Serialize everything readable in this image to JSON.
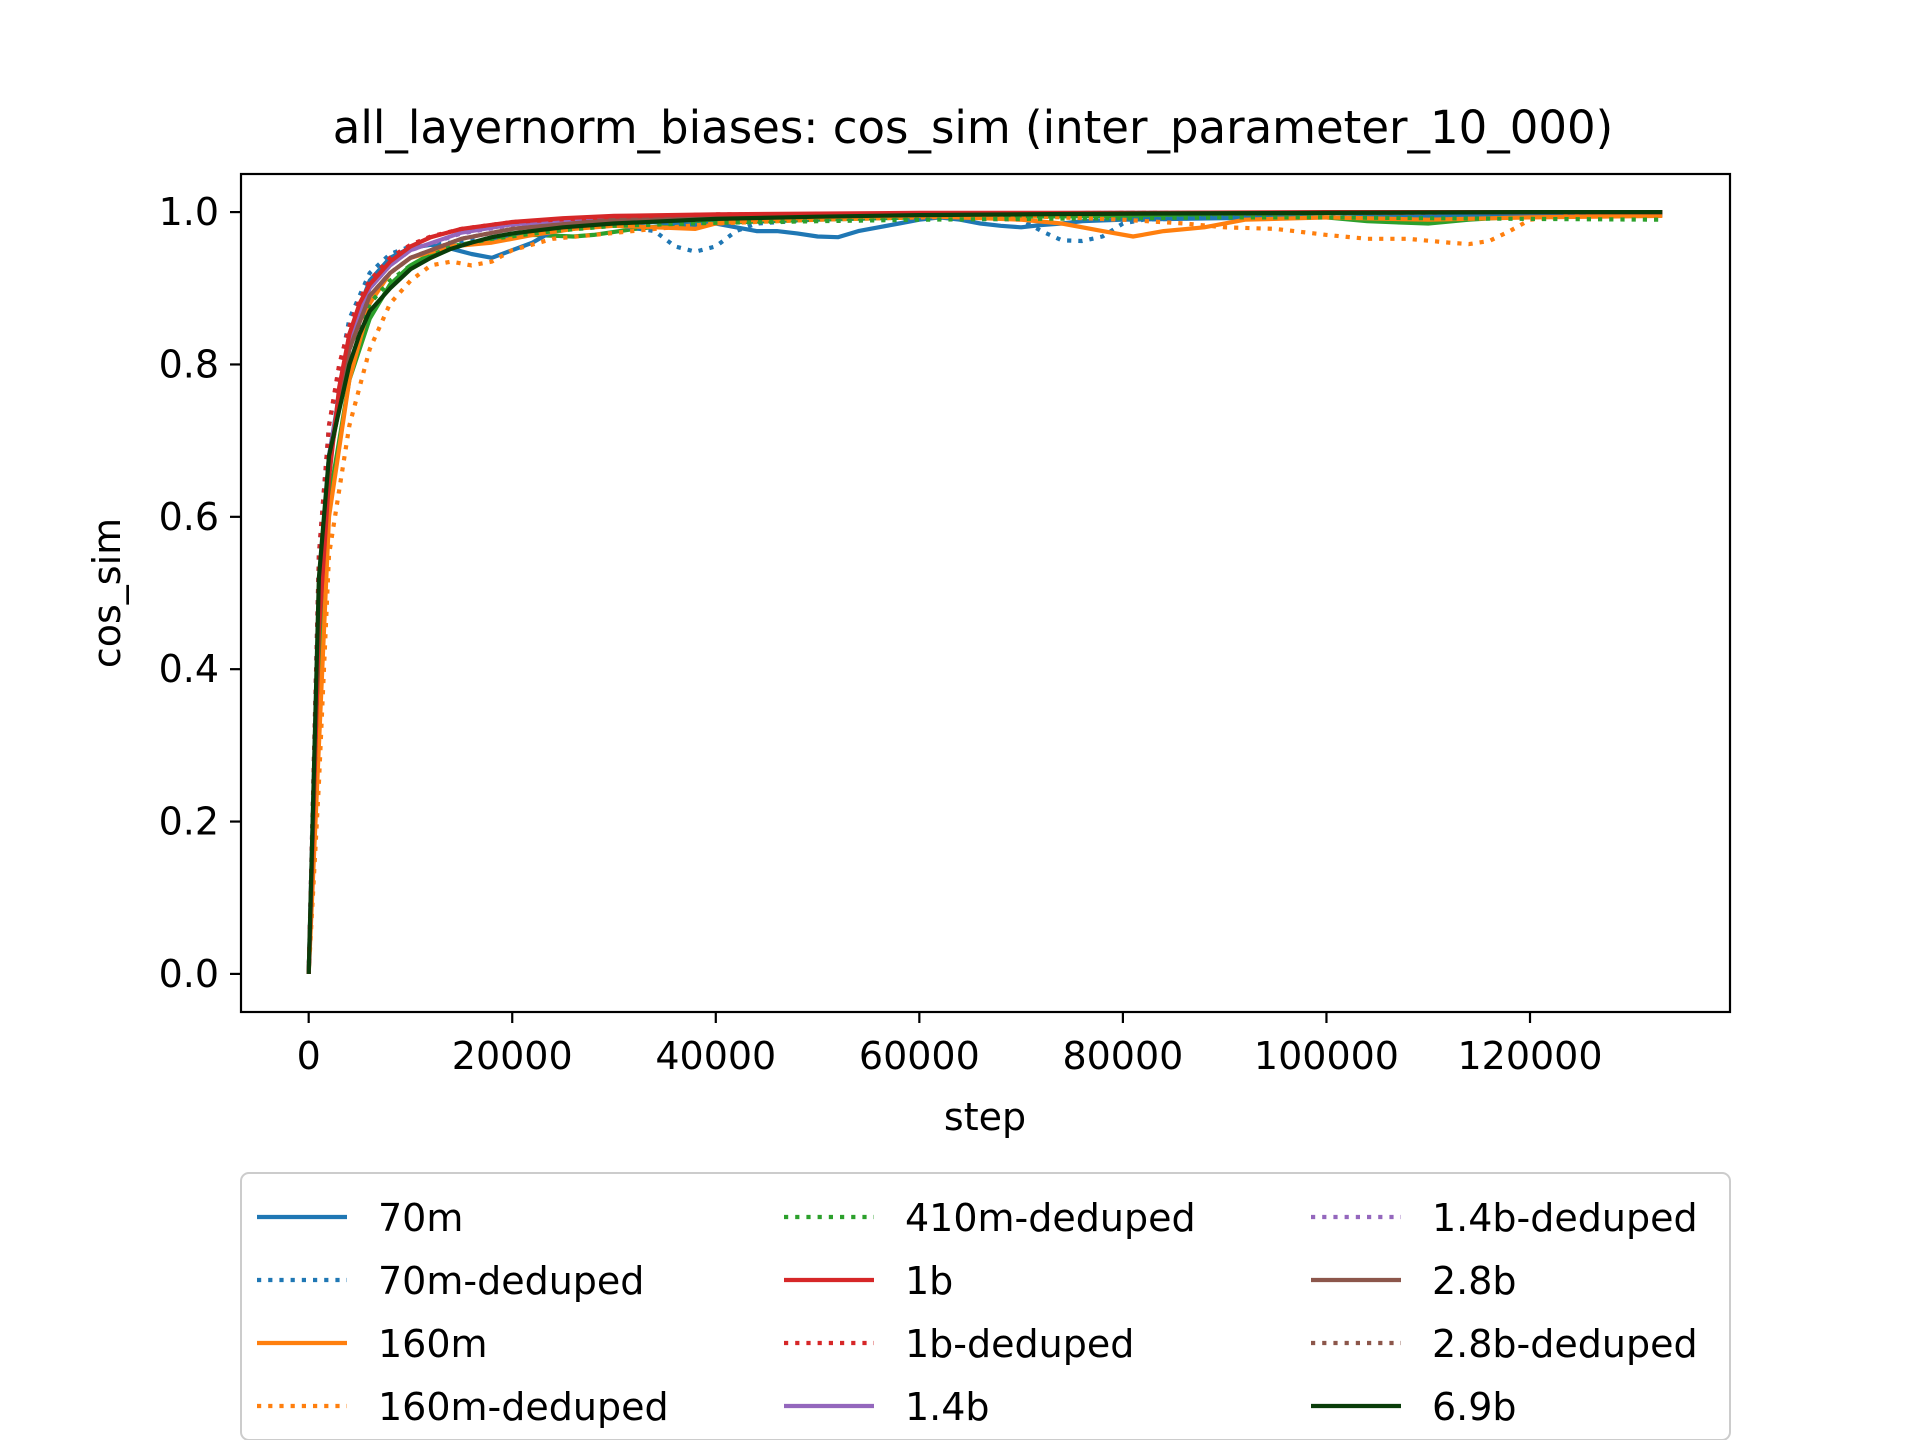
{
  "chart_data": {
    "type": "line",
    "title": "all_layernorm_biases: cos_sim (inter_parameter_10_000)",
    "xlabel": "step",
    "ylabel": "cos_sim",
    "xlim": [
      -6650,
      139650
    ],
    "ylim": [
      -0.05,
      1.05
    ],
    "xticks": [
      0,
      20000,
      40000,
      60000,
      80000,
      100000,
      120000
    ],
    "xtick_labels": [
      "0",
      "20000",
      "40000",
      "60000",
      "80000",
      "100000",
      "120000"
    ],
    "yticks": [
      0.0,
      0.2,
      0.4,
      0.6,
      0.8,
      1.0
    ],
    "ytick_labels": [
      "0.0",
      "0.2",
      "0.4",
      "0.6",
      "0.8",
      "1.0"
    ],
    "grid": false,
    "legend_position": "below plot, 3 columns",
    "series": [
      {
        "name": "70m",
        "color": "#1f77b4",
        "style": "solid",
        "x": [
          0,
          1000,
          2000,
          4000,
          6000,
          8000,
          10000,
          12000,
          14000,
          16000,
          18000,
          20000,
          22000,
          24000,
          26000,
          28000,
          30000,
          32000,
          34000,
          36000,
          38000,
          40000,
          42000,
          44000,
          46000,
          48000,
          50000,
          52000,
          54000,
          56000,
          58000,
          60000,
          62000,
          64000,
          66000,
          68000,
          70000,
          72000,
          74000,
          76000,
          80000,
          90000,
          100000,
          110000,
          120000,
          133000
        ],
        "y": [
          0.0,
          0.5,
          0.68,
          0.84,
          0.91,
          0.94,
          0.953,
          0.957,
          0.952,
          0.945,
          0.94,
          0.95,
          0.96,
          0.975,
          0.98,
          0.985,
          0.983,
          0.985,
          0.987,
          0.985,
          0.983,
          0.985,
          0.98,
          0.975,
          0.975,
          0.972,
          0.968,
          0.967,
          0.975,
          0.98,
          0.985,
          0.99,
          0.993,
          0.99,
          0.985,
          0.982,
          0.98,
          0.983,
          0.985,
          0.988,
          0.99,
          0.992,
          0.993,
          0.994,
          0.995,
          0.996
        ]
      },
      {
        "name": "70m-deduped",
        "color": "#1f77b4",
        "style": "dotted",
        "x": [
          0,
          1000,
          2000,
          4000,
          6000,
          8000,
          10000,
          14000,
          18000,
          22000,
          26000,
          30000,
          34000,
          36000,
          38000,
          40000,
          42000,
          44000,
          50000,
          60000,
          70000,
          72000,
          74000,
          76000,
          78000,
          80000,
          82000,
          90000,
          100000,
          110000,
          120000,
          133000
        ],
        "y": [
          0.0,
          0.55,
          0.72,
          0.86,
          0.92,
          0.945,
          0.955,
          0.96,
          0.965,
          0.97,
          0.978,
          0.983,
          0.975,
          0.955,
          0.948,
          0.955,
          0.975,
          0.985,
          0.99,
          0.993,
          0.99,
          0.975,
          0.963,
          0.962,
          0.968,
          0.985,
          0.99,
          0.993,
          0.994,
          0.995,
          0.995,
          0.996
        ]
      },
      {
        "name": "160m",
        "color": "#ff7f0e",
        "style": "solid",
        "x": [
          0,
          1000,
          2000,
          4000,
          6000,
          8000,
          10000,
          14000,
          18000,
          22000,
          26000,
          30000,
          34000,
          38000,
          40000,
          44000,
          50000,
          60000,
          70000,
          74000,
          78000,
          81000,
          84000,
          88000,
          92000,
          100000,
          110000,
          120000,
          133000
        ],
        "y": [
          0.0,
          0.3,
          0.6,
          0.78,
          0.88,
          0.92,
          0.94,
          0.955,
          0.96,
          0.97,
          0.978,
          0.982,
          0.98,
          0.978,
          0.985,
          0.99,
          0.993,
          0.995,
          0.99,
          0.985,
          0.975,
          0.968,
          0.975,
          0.98,
          0.99,
          0.993,
          0.99,
          0.993,
          0.995
        ]
      },
      {
        "name": "160m-deduped",
        "color": "#ff7f0e",
        "style": "dotted",
        "x": [
          0,
          1000,
          2000,
          4000,
          6000,
          8000,
          10000,
          12000,
          14000,
          16000,
          18000,
          20000,
          24000,
          28000,
          34000,
          40000,
          50000,
          60000,
          70000,
          80000,
          86000,
          90000,
          95000,
          100000,
          104000,
          108000,
          112000,
          114000,
          116000,
          118000,
          120000,
          124000,
          133000
        ],
        "y": [
          0.0,
          0.25,
          0.55,
          0.72,
          0.82,
          0.88,
          0.91,
          0.93,
          0.935,
          0.93,
          0.935,
          0.95,
          0.965,
          0.97,
          0.978,
          0.985,
          0.99,
          0.993,
          0.995,
          0.99,
          0.985,
          0.98,
          0.978,
          0.97,
          0.965,
          0.965,
          0.96,
          0.958,
          0.962,
          0.975,
          0.99,
          0.995,
          0.996
        ]
      },
      {
        "name": "410m-deduped",
        "color": "#2ca02c",
        "style": "dotted",
        "x": [
          0,
          1000,
          2000,
          4000,
          6000,
          8000,
          10000,
          14000,
          18000,
          24000,
          30000,
          40000,
          50000,
          60000,
          70000,
          80000,
          90000,
          100000,
          110000,
          120000,
          133000
        ],
        "y": [
          0.0,
          0.45,
          0.68,
          0.82,
          0.88,
          0.91,
          0.93,
          0.955,
          0.965,
          0.975,
          0.982,
          0.986,
          0.988,
          0.99,
          0.991,
          0.992,
          0.993,
          0.993,
          0.992,
          0.991,
          0.99
        ]
      },
      {
        "name": "1b",
        "color": "#d62728",
        "style": "solid",
        "x": [
          0,
          1000,
          2000,
          3000,
          4000,
          5000,
          6000,
          8000,
          10000,
          12000,
          15000,
          20000,
          25000,
          30000,
          40000,
          50000,
          60000,
          80000,
          100000,
          120000,
          133000
        ],
        "y": [
          0.0,
          0.45,
          0.65,
          0.77,
          0.84,
          0.88,
          0.905,
          0.935,
          0.955,
          0.967,
          0.978,
          0.987,
          0.992,
          0.995,
          0.997,
          0.998,
          0.999,
          0.999,
          1.0,
          1.0,
          1.0
        ]
      },
      {
        "name": "1b-deduped",
        "color": "#d62728",
        "style": "dotted",
        "x": [
          0,
          1000,
          2000,
          3000,
          4000,
          5000,
          6000,
          8000,
          10000,
          12000,
          15000,
          20000,
          30000,
          40000,
          60000,
          80000,
          100000,
          120000,
          133000
        ],
        "y": [
          0.0,
          0.55,
          0.72,
          0.8,
          0.85,
          0.885,
          0.91,
          0.94,
          0.957,
          0.968,
          0.978,
          0.987,
          0.994,
          0.997,
          0.998,
          0.999,
          0.999,
          1.0,
          1.0
        ]
      },
      {
        "name": "1.4b",
        "color": "#9467bd",
        "style": "solid",
        "x": [
          0,
          1000,
          2000,
          4000,
          6000,
          8000,
          10000,
          15000,
          20000,
          30000,
          40000,
          60000,
          80000,
          100000,
          120000,
          133000
        ],
        "y": [
          0.0,
          0.5,
          0.68,
          0.83,
          0.9,
          0.93,
          0.95,
          0.973,
          0.984,
          0.992,
          0.996,
          0.998,
          0.999,
          0.999,
          1.0,
          1.0
        ]
      },
      {
        "name": "1.4b-deduped",
        "color": "#9467bd",
        "style": "dotted",
        "x": [
          0,
          1000,
          2000,
          4000,
          6000,
          8000,
          10000,
          15000,
          20000,
          30000,
          40000,
          60000,
          80000,
          100000,
          120000,
          133000
        ],
        "y": [
          0.0,
          0.5,
          0.68,
          0.83,
          0.9,
          0.93,
          0.95,
          0.972,
          0.983,
          0.991,
          0.995,
          0.998,
          0.999,
          0.999,
          1.0,
          1.0
        ]
      },
      {
        "name": "2.8b",
        "color": "#8c564b",
        "style": "solid",
        "x": [
          0,
          1000,
          2000,
          4000,
          6000,
          8000,
          10000,
          15000,
          20000,
          30000,
          40000,
          60000,
          80000,
          100000,
          120000,
          133000
        ],
        "y": [
          0.0,
          0.48,
          0.67,
          0.82,
          0.89,
          0.92,
          0.94,
          0.965,
          0.978,
          0.99,
          0.994,
          0.997,
          0.998,
          0.999,
          1.0,
          1.0
        ]
      },
      {
        "name": "2.8b-deduped",
        "color": "#8c564b",
        "style": "dotted",
        "x": [
          0,
          1000,
          2000,
          4000,
          6000,
          8000,
          10000,
          15000,
          20000,
          30000,
          40000,
          60000,
          80000,
          100000,
          120000,
          133000
        ],
        "y": [
          0.0,
          0.48,
          0.67,
          0.82,
          0.89,
          0.92,
          0.94,
          0.965,
          0.978,
          0.99,
          0.994,
          0.997,
          0.998,
          0.999,
          1.0,
          1.0
        ]
      },
      {
        "name": "6.9b",
        "color": "#0a3d0a",
        "style": "solid",
        "x": [
          0,
          1000,
          2000,
          3000,
          4000,
          5000,
          6000,
          8000,
          10000,
          12000,
          14000,
          16000,
          18000,
          20000,
          25000,
          30000,
          40000,
          50000,
          60000,
          80000,
          100000,
          120000,
          133000
        ],
        "y": [
          0.0,
          0.52,
          0.68,
          0.74,
          0.8,
          0.84,
          0.87,
          0.9,
          0.925,
          0.94,
          0.952,
          0.96,
          0.967,
          0.972,
          0.98,
          0.985,
          0.991,
          0.994,
          0.996,
          0.998,
          0.999,
          1.0,
          1.0
        ]
      }
    ],
    "extra_series_410m_solid": {
      "color": "#2ca02c",
      "style": "solid",
      "x": [
        0,
        1000,
        2000,
        4000,
        6000,
        8000,
        10000,
        12000,
        14000,
        18000,
        22000,
        26000,
        28000,
        32000,
        36000,
        40000,
        50000,
        60000,
        70000,
        80000,
        90000,
        100000,
        104000,
        108000,
        110000,
        114000,
        120000,
        133000
      ],
      "y": [
        0.0,
        0.35,
        0.62,
        0.78,
        0.86,
        0.905,
        0.93,
        0.945,
        0.955,
        0.965,
        0.97,
        0.968,
        0.97,
        0.978,
        0.983,
        0.986,
        0.99,
        0.993,
        0.994,
        0.995,
        0.995,
        0.993,
        0.988,
        0.986,
        0.985,
        0.99,
        0.995,
        0.997
      ]
    }
  }
}
